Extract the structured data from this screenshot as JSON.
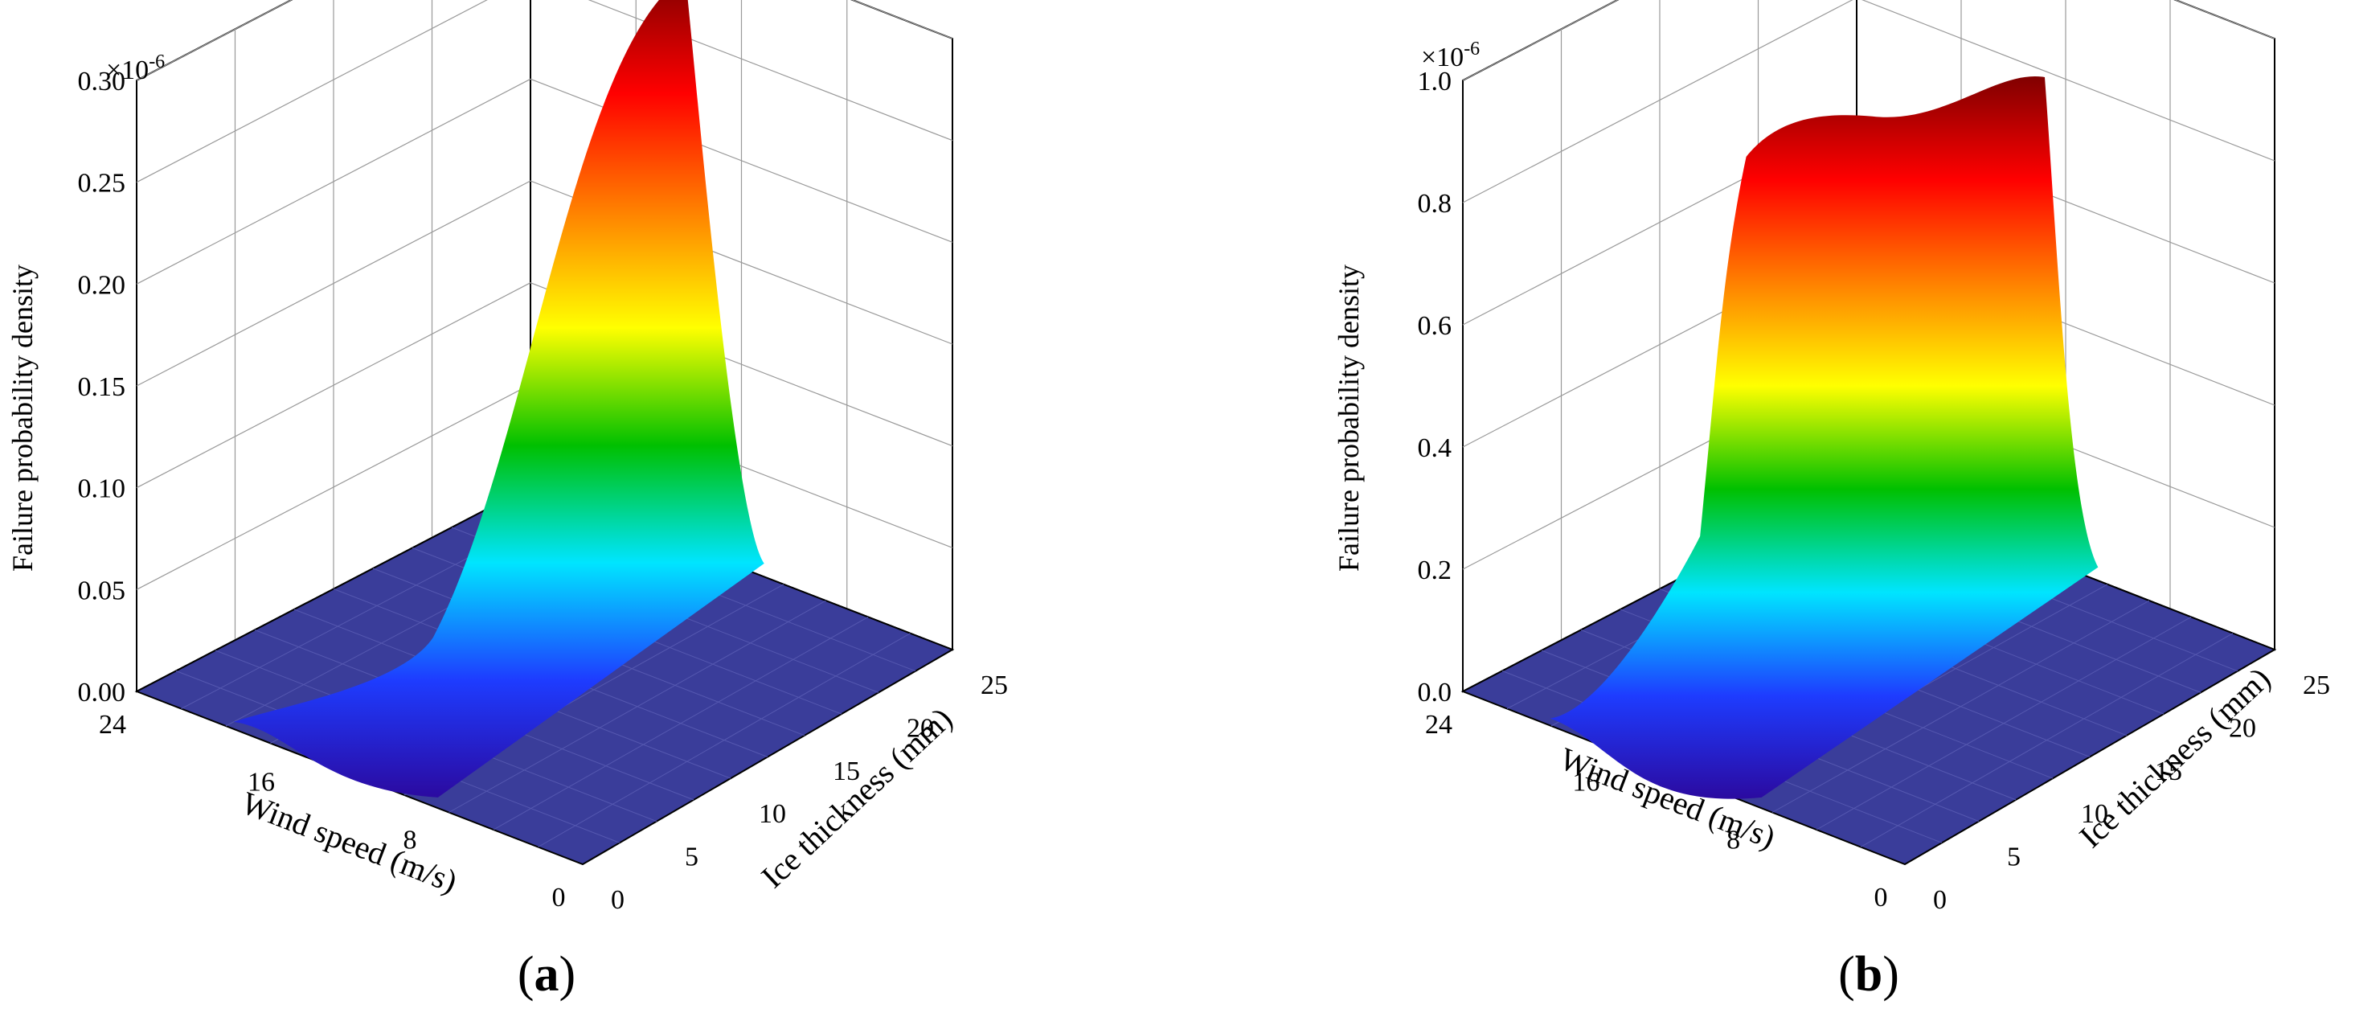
{
  "chart_data": [
    {
      "type": "surface",
      "panel_label": "a",
      "zlabel": "Failure probability density",
      "zlabel_multiplier": "×10",
      "zlabel_exponent": "-6",
      "zlim": [
        0,
        0.3
      ],
      "z_ticks": [
        "0.00",
        "0.05",
        "0.10",
        "0.15",
        "0.20",
        "0.25",
        "0.30"
      ],
      "xlabel": "Wind speed (m/s)",
      "xlim": [
        0,
        24
      ],
      "x_ticks": [
        "0",
        "8",
        "16",
        "24"
      ],
      "ylabel": "Ice thickness (mm)",
      "ylim": [
        0,
        25
      ],
      "y_ticks": [
        "0",
        "5",
        "10",
        "15",
        "20",
        "25"
      ],
      "peak": {
        "wind_speed": 10,
        "ice_thickness": 25,
        "value": 0.28
      },
      "colormap": [
        "#2b0aa0",
        "#1e3cff",
        "#00e5ff",
        "#00c000",
        "#ffff00",
        "#ff8000",
        "#ff0000",
        "#800000"
      ],
      "floor_color": "#3a3d9a",
      "grid": true
    },
    {
      "type": "surface",
      "panel_label": "b",
      "zlabel": "Failure probability density",
      "zlabel_multiplier": "×10",
      "zlabel_exponent": "-6",
      "zlim": [
        0,
        1.0
      ],
      "z_ticks": [
        "0.0",
        "0.2",
        "0.4",
        "0.6",
        "0.8",
        "1.0"
      ],
      "xlabel": "Wind speed (m/s)",
      "xlim": [
        0,
        24
      ],
      "x_ticks": [
        "0",
        "8",
        "16",
        "24"
      ],
      "ylabel": "Ice thickness (mm)",
      "ylim": [
        0,
        25
      ],
      "y_ticks": [
        "0",
        "5",
        "10",
        "15",
        "20",
        "25"
      ],
      "peak": {
        "wind_speed": 11,
        "ice_thickness": 12,
        "value": 0.88
      },
      "colormap": [
        "#2b0aa0",
        "#1e3cff",
        "#00e5ff",
        "#00c000",
        "#ffff00",
        "#ff8000",
        "#ff0000",
        "#800000"
      ],
      "floor_color": "#3a3d9a",
      "grid": true
    }
  ]
}
